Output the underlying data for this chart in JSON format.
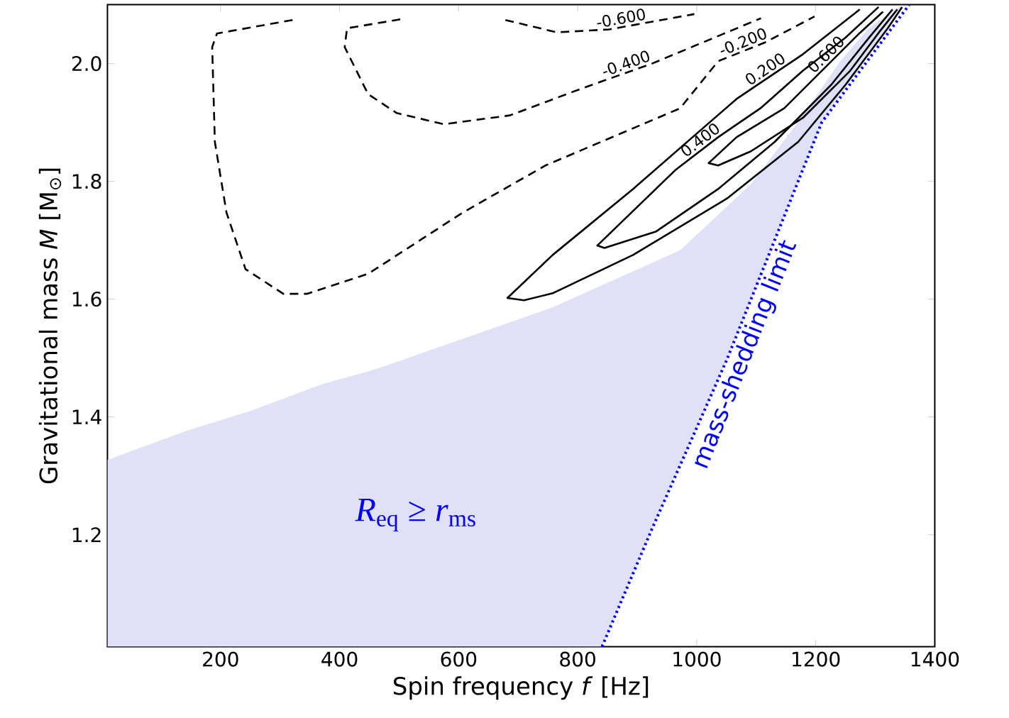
{
  "chart_data": {
    "type": "line",
    "xlabel": "Spin frequency *f* [Hz]",
    "ylabel": "Gravitational mass *M* [M$_{⊙}$]",
    "xlim": [
      10,
      1400
    ],
    "ylim": [
      1.01,
      2.1
    ],
    "xticks": [
      200,
      400,
      600,
      800,
      1000,
      1200,
      1400
    ],
    "yticks": [
      1.2,
      1.4,
      1.6,
      1.8,
      {
        "value": 2.0,
        "label": "2.0"
      }
    ],
    "series": [
      {
        "type": "area",
        "color": "#e0e0f8",
        "x": [
          10,
          147,
          250,
          369,
          464,
          560,
          758,
          972,
          1091,
          1170,
          1241,
          1289,
          1345,
          1210,
          1051,
          924.5,
          841
        ],
        "values": [
          1.327,
          1.378,
          1.41,
          1.455,
          1.482,
          1.516,
          1.586,
          1.683,
          1.795,
          1.9,
          2.004,
          2.06,
          2.1,
          1.9,
          1.498,
          1.209,
          1.01
        ]
      },
      {
        "name": "mass-shedding limit",
        "color": "#0000ff",
        "line_style": "dotted",
        "x": [
          841,
          924.5,
          1051,
          1210,
          1357
        ],
        "values": [
          1.01,
          1.209,
          1.498,
          1.9,
          2.1
        ]
      },
      {
        "name": "-0.600",
        "color": "#000000",
        "line_style": "dashed",
        "x": [
          678.6,
          765,
          853,
          996
        ],
        "values": [
          2.074,
          2.053,
          2.058,
          2.084
        ]
      },
      {
        "name": "-0.400",
        "color": "#000000",
        "line_style": "dashed",
        "x": [
          502,
          412.6,
          408.6,
          448,
          496,
          575,
          686,
          805,
          925,
          1108
        ],
        "values": [
          2.075,
          2.06,
          2.028,
          1.948,
          1.916,
          1.897,
          1.912,
          1.957,
          2.0,
          2.077
        ]
      },
      {
        "name": "-0.200",
        "color": "#000000",
        "line_style": "dashed",
        "x": [
          321,
          194,
          186,
          190.5,
          210,
          242,
          305.5,
          345,
          448,
          607,
          746,
          972,
          1036,
          1115,
          1198
        ],
        "values": [
          2.074,
          2.051,
          2.028,
          1.867,
          1.747,
          1.651,
          1.609,
          1.609,
          1.643,
          1.747,
          1.827,
          1.924,
          2.004,
          2.036,
          2.08
        ]
      },
      {
        "name": "0.200",
        "color": "#000000",
        "line_style": "solid",
        "x": [
          1274,
          1178.6,
          1067,
          893,
          758,
          682,
          710,
          758,
          893,
          1051,
          1170.5,
          1250,
          1321,
          1345
        ],
        "values": [
          2.092,
          2.016,
          1.94,
          1.787,
          1.675,
          1.602,
          1.598,
          1.61,
          1.675,
          1.771,
          1.867,
          1.964,
          2.06,
          2.096
        ]
      },
      {
        "name": "0.400",
        "color": "#000000",
        "line_style": "solid",
        "x": [
          1305.5,
          1250,
          1178.6,
          1107,
          1036,
          964,
          833,
          845,
          932,
          1036,
          1131,
          1226,
          1289.5,
          1329
        ],
        "values": [
          2.096,
          2.044,
          1.988,
          1.924,
          1.875,
          1.819,
          1.691,
          1.687,
          1.715,
          1.787,
          1.867,
          1.964,
          2.044,
          2.092
        ]
      },
      {
        "name": "0.600",
        "color": "#000000",
        "line_style": "solid",
        "x": [
          1313,
          1274,
          1147,
          1067,
          1020,
          1036,
          1091,
          1178.6,
          1258,
          1305.5,
          1337
        ],
        "values": [
          2.088,
          2.052,
          1.924,
          1.875,
          1.831,
          1.827,
          1.851,
          1.908,
          1.988,
          2.052,
          2.092
        ]
      }
    ],
    "annotations": [
      "*R*$_{eq}$ ≥ *r*$_{ms}$"
    ]
  }
}
